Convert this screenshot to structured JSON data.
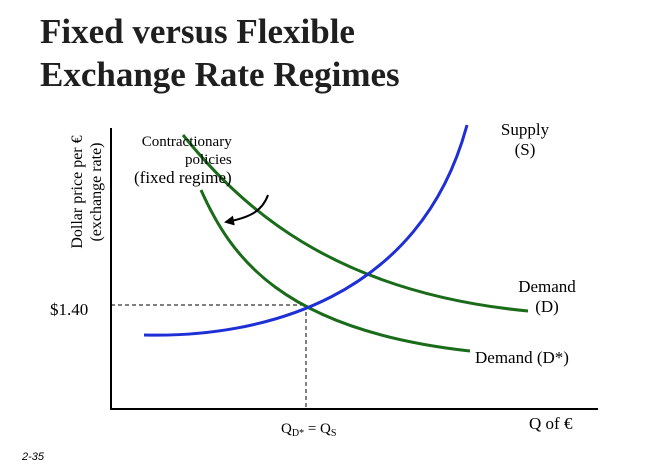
{
  "title": {
    "line1": "Fixed versus Flexible",
    "line2": "Exchange Rate Regimes"
  },
  "y_axis_label": {
    "line1": "Dollar price per €",
    "line2": "(exchange rate)"
  },
  "x_axis_label": "Q of €",
  "price_label": "$1.40",
  "annotation": {
    "line1": "Contractionary",
    "line2": "policies",
    "line3": "(fixed regime)"
  },
  "curves": {
    "supply": {
      "line1": "Supply",
      "line2": "(S)"
    },
    "demand": {
      "line1": "Demand",
      "line2": "(D)"
    },
    "demand_shifted": "Demand (D*)"
  },
  "equilibrium_quantity": {
    "q1": "Q",
    "sub1": "D*",
    "eq": " = ",
    "q2": "Q",
    "sub2": "S"
  },
  "slide_number": "2-35",
  "colors": {
    "curves": "#1a6b1a",
    "supply": "#1f2fd6",
    "text": "#000000"
  }
}
